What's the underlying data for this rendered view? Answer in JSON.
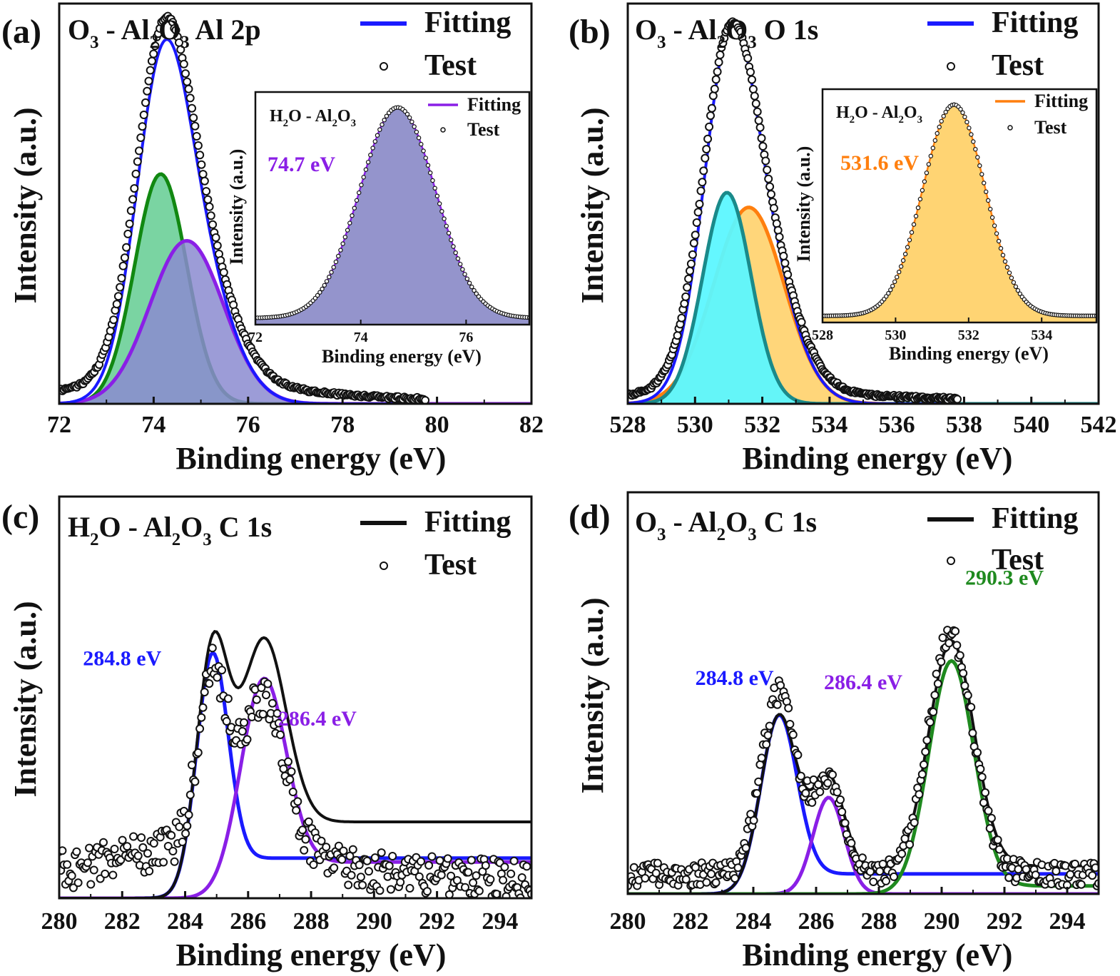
{
  "figure": {
    "panels": [
      {
        "id": "a",
        "letter": "(a)",
        "title_parts": [
          {
            "t": "O",
            "sub": false
          },
          {
            "t": "3",
            "sub": true
          },
          {
            "t": " - Al",
            "sub": false
          },
          {
            "t": "2",
            "sub": true
          },
          {
            "t": "O",
            "sub": false
          },
          {
            "t": "3",
            "sub": true
          },
          {
            "t": "  Al 2p",
            "sub": false
          }
        ],
        "xlabel": "Binding energy (eV)",
        "ylabel": "Intensity (a.u.)",
        "xlim": [
          72,
          82
        ],
        "xticks": [
          "72",
          "74",
          "76",
          "78",
          "80",
          "82"
        ],
        "ylim": [
          0,
          1.08
        ],
        "legend": [
          {
            "label": "Fitting",
            "kind": "line",
            "color": "#1a1aff"
          },
          {
            "label": "Test",
            "kind": "marker"
          }
        ],
        "test_points": {
          "x_range": [
            72.0,
            79.75
          ],
          "count": 230,
          "noise": 0.004,
          "components": [
            {
              "center": 74.15,
              "height": 0.62,
              "sigma": 0.55
            },
            {
              "center": 74.7,
              "height": 0.44,
              "sigma": 0.78
            },
            {
              "center": 74.6,
              "height": 0.05,
              "sigma": 2.2
            }
          ]
        },
        "components": [
          {
            "label": "",
            "center": 74.15,
            "height": 0.62,
            "sigma": 0.55,
            "color": "#118811",
            "fill": "#6ccf98",
            "fill_opacity": 0.9
          },
          {
            "label": "",
            "center": 74.7,
            "height": 0.44,
            "sigma": 0.78,
            "color": "#8a1fe6",
            "fill": "#8b8bd0",
            "fill_opacity": 0.85
          }
        ],
        "fitting": {
          "color": "#1a1aff",
          "x_range": [
            72.0,
            79.75
          ]
        },
        "annotations": [],
        "inset": {
          "title_parts": [
            {
              "t": "H",
              "sub": false
            },
            {
              "t": "2",
              "sub": true
            },
            {
              "t": "O - Al",
              "sub": false
            },
            {
              "t": "2",
              "sub": true
            },
            {
              "t": "O",
              "sub": false
            },
            {
              "t": "3",
              "sub": true
            }
          ],
          "xlabel": "Binding energy (eV)",
          "ylabel": "Intensity (a.u.)",
          "xlim": [
            72,
            77.2
          ],
          "xticks": [
            "72",
            "74",
            "76"
          ],
          "ylim": [
            0,
            1.06
          ],
          "legend": [
            {
              "label": "Fitting",
              "kind": "line",
              "color": "#8a1fe6"
            },
            {
              "label": "Test",
              "kind": "marker"
            }
          ],
          "peak_label": {
            "text": "74.7 eV",
            "color": "#8a1fe6"
          },
          "peak": {
            "center": 74.7,
            "height": 0.96,
            "sigma": 0.72,
            "color": "#8a1fe6",
            "fill": "#9494cc"
          },
          "points": 120
        }
      },
      {
        "id": "b",
        "letter": "(b)",
        "title_parts": [
          {
            "t": "O",
            "sub": false
          },
          {
            "t": "3",
            "sub": true
          },
          {
            "t": " - Al",
            "sub": false
          },
          {
            "t": "2",
            "sub": true
          },
          {
            "t": "O",
            "sub": false
          },
          {
            "t": "3",
            "sub": true
          },
          {
            "t": "  O 1s",
            "sub": false
          }
        ],
        "xlabel": "Binding energy (eV)",
        "ylabel": "Intensity (a.u.)",
        "xlim": [
          528,
          542
        ],
        "xticks": [
          "528",
          "530",
          "532",
          "534",
          "536",
          "538",
          "540",
          "542"
        ],
        "ylim": [
          0,
          1.08
        ],
        "legend": [
          {
            "label": "Fitting",
            "kind": "line",
            "color": "#1a1aff"
          },
          {
            "label": "Test",
            "kind": "marker"
          }
        ],
        "test_points": {
          "x_range": [
            528.0,
            537.8
          ],
          "count": 240,
          "noise": 0.004,
          "components": [
            {
              "center": 530.95,
              "height": 0.56,
              "sigma": 0.75
            },
            {
              "center": 531.6,
              "height": 0.5,
              "sigma": 1.1
            },
            {
              "center": 531.5,
              "height": 0.02,
              "sigma": 3.5
            }
          ]
        },
        "components": [
          {
            "label": "",
            "center": 531.6,
            "height": 0.53,
            "sigma": 1.05,
            "color": "#ff7f0e",
            "fill": "#ffd473",
            "fill_opacity": 0.95
          },
          {
            "label": "",
            "center": 530.95,
            "height": 0.57,
            "sigma": 0.72,
            "color": "#1a8a8a",
            "fill": "#5cf7ff",
            "fill_opacity": 0.95
          }
        ],
        "fitting": {
          "color": "#1a1aff",
          "x_range": [
            528.0,
            537.8
          ]
        },
        "annotations": [],
        "inset": {
          "title_parts": [
            {
              "t": "H",
              "sub": false
            },
            {
              "t": "2",
              "sub": true
            },
            {
              "t": "O - Al",
              "sub": false
            },
            {
              "t": "2",
              "sub": true
            },
            {
              "t": "O",
              "sub": false
            },
            {
              "t": "3",
              "sub": true
            }
          ],
          "xlabel": "Binding energy (eV)",
          "ylabel": "Intensity (a.u.)",
          "xlim": [
            528,
            535.5
          ],
          "xticks": [
            "528",
            "530",
            "532",
            "534"
          ],
          "ylim": [
            0,
            1.06
          ],
          "legend": [
            {
              "label": "Fitting",
              "kind": "line",
              "color": "#ff7f0e"
            },
            {
              "label": "Test",
              "kind": "marker"
            }
          ],
          "peak_label": {
            "text": "531.6 eV",
            "color": "#ff7f0e"
          },
          "peak": {
            "center": 531.6,
            "height": 0.96,
            "sigma": 0.85,
            "color": "#ff7f0e",
            "fill": "#ffd473"
          },
          "points": 130
        }
      },
      {
        "id": "c",
        "letter": "(c)",
        "title_parts": [
          {
            "t": "H",
            "sub": false
          },
          {
            "t": "2",
            "sub": true
          },
          {
            "t": "O - Al",
            "sub": false
          },
          {
            "t": "2",
            "sub": true
          },
          {
            "t": "O",
            "sub": false
          },
          {
            "t": "3",
            "sub": true
          },
          {
            "t": " C 1s",
            "sub": false
          }
        ],
        "xlabel": "Binding energy (eV)",
        "ylabel": "Intensity (a.u.)",
        "xlim": [
          280,
          295
        ],
        "xticks": [
          "280",
          "282",
          "284",
          "286",
          "288",
          "290",
          "292",
          "294"
        ],
        "ylim": [
          0,
          1.0
        ],
        "legend": [
          {
            "label": "Fitting",
            "kind": "line",
            "color": "#111111"
          },
          {
            "label": "Test",
            "kind": "marker"
          }
        ],
        "test_points": {
          "x_range": [
            280.0,
            295.0
          ],
          "count": 300,
          "noise": 0.05,
          "components": [
            {
              "center": 284.85,
              "height": 0.42,
              "sigma": 0.45
            },
            {
              "center": 286.45,
              "height": 0.38,
              "sigma": 0.7
            },
            {
              "center": 285.0,
              "height": 0.08,
              "sigma": 3.0
            }
          ]
        },
        "components": [
          {
            "label": "284.8 eV",
            "center": 284.85,
            "height": 0.56,
            "sigma": 0.5,
            "tail": 0.1,
            "color": "#1a1aff",
            "fill": null
          },
          {
            "label": "286.4 eV",
            "center": 286.45,
            "height": 0.5,
            "sigma": 0.72,
            "tail": 0.09,
            "color": "#8a1fe6",
            "fill": null
          }
        ],
        "fitting": {
          "color": "#111111",
          "x_range": [
            280.0,
            295.0
          ]
        },
        "annotations": [
          {
            "text": "284.8 eV",
            "color": "#1a1aff",
            "x": 282.0,
            "y": 0.58
          },
          {
            "text": "286.4 eV",
            "color": "#8a1fe6",
            "x": 288.2,
            "y": 0.43
          }
        ],
        "inset": null
      },
      {
        "id": "d",
        "letter": "(d)",
        "title_parts": [
          {
            "t": "O",
            "sub": false
          },
          {
            "t": "3",
            "sub": true
          },
          {
            "t": " - Al",
            "sub": false
          },
          {
            "t": "2",
            "sub": true
          },
          {
            "t": "O",
            "sub": false
          },
          {
            "t": "3",
            "sub": true
          },
          {
            "t": "  C 1s",
            "sub": false
          }
        ],
        "xlabel": "Binding energy (eV)",
        "ylabel": "Intensity (a.u.)",
        "xlim": [
          280,
          295
        ],
        "xticks": [
          "280",
          "282",
          "284",
          "286",
          "288",
          "290",
          "292",
          "294"
        ],
        "ylim": [
          0,
          1.0
        ],
        "legend": [
          {
            "label": "Fitting",
            "kind": "line",
            "color": "#111111"
          },
          {
            "label": "Test",
            "kind": "marker"
          }
        ],
        "test_points": {
          "x_range": [
            280.0,
            295.0
          ],
          "count": 300,
          "noise": 0.03,
          "components": [
            {
              "center": 284.8,
              "height": 0.45,
              "sigma": 0.55
            },
            {
              "center": 286.4,
              "height": 0.24,
              "sigma": 0.5
            },
            {
              "center": 290.3,
              "height": 0.6,
              "sigma": 0.7
            }
          ]
        },
        "components": [
          {
            "label": "284.8 eV",
            "center": 284.8,
            "height": 0.42,
            "sigma": 0.58,
            "tail": 0.05,
            "color": "#1a1aff",
            "fill": null
          },
          {
            "label": "286.4 eV",
            "center": 286.4,
            "height": 0.24,
            "sigma": 0.5,
            "tail": 0.0,
            "color": "#8a1fe6",
            "fill": null
          },
          {
            "label": "290.3 eV",
            "center": 290.3,
            "height": 0.57,
            "sigma": 0.72,
            "tail": 0.02,
            "color": "#1f8a1f",
            "fill": null
          }
        ],
        "fitting": {
          "color": "#111111",
          "x_range": [
            280.0,
            295.0
          ]
        },
        "annotations": [
          {
            "text": "284.8 eV",
            "color": "#1a1aff",
            "x": 283.4,
            "y": 0.52
          },
          {
            "text": "286.4 eV",
            "color": "#8a1fe6",
            "x": 287.5,
            "y": 0.51
          },
          {
            "text": "290.3 eV",
            "color": "#1f8a1f",
            "x": 292.0,
            "y": 0.77
          }
        ],
        "inset": null
      }
    ]
  },
  "chart_data": [
    {
      "type": "line",
      "title": "O3 - Al2O3 Al 2p",
      "xlabel": "Binding energy (eV)",
      "ylabel": "Intensity (a.u.)",
      "xlim": [
        72,
        82
      ],
      "series": [
        {
          "name": "Fitting"
        },
        {
          "name": "Test"
        }
      ],
      "peaks_eV": [
        74.15,
        74.7
      ],
      "inset": {
        "title": "H2O - Al2O3",
        "xlim": [
          72,
          77.2
        ],
        "peak_label": "74.7 eV",
        "series": [
          "Fitting",
          "Test"
        ]
      },
      "grid": false,
      "legend": "top-right"
    },
    {
      "type": "line",
      "title": "O3 - Al2O3 O 1s",
      "xlabel": "Binding energy (eV)",
      "ylabel": "Intensity (a.u.)",
      "xlim": [
        528,
        542
      ],
      "series": [
        {
          "name": "Fitting"
        },
        {
          "name": "Test"
        }
      ],
      "peaks_eV": [
        530.95,
        531.6
      ],
      "inset": {
        "title": "H2O - Al2O3",
        "xlim": [
          528,
          535.5
        ],
        "peak_label": "531.6 eV",
        "series": [
          "Fitting",
          "Test"
        ]
      },
      "grid": false,
      "legend": "top-right"
    },
    {
      "type": "line",
      "title": "H2O - Al2O3 C 1s",
      "xlabel": "Binding energy (eV)",
      "ylabel": "Intensity (a.u.)",
      "xlim": [
        280,
        295
      ],
      "series": [
        {
          "name": "Fitting"
        },
        {
          "name": "Test"
        }
      ],
      "peaks_eV": [
        284.8,
        286.4
      ],
      "annotations": [
        "284.8 eV",
        "286.4 eV"
      ],
      "grid": false,
      "legend": "top-right"
    },
    {
      "type": "line",
      "title": "O3 - Al2O3 C 1s",
      "xlabel": "Binding energy (eV)",
      "ylabel": "Intensity (a.u.)",
      "xlim": [
        280,
        295
      ],
      "series": [
        {
          "name": "Fitting"
        },
        {
          "name": "Test"
        }
      ],
      "peaks_eV": [
        284.8,
        286.4,
        290.3
      ],
      "annotations": [
        "284.8 eV",
        "286.4 eV",
        "290.3 eV"
      ],
      "grid": false,
      "legend": "top-right"
    }
  ]
}
